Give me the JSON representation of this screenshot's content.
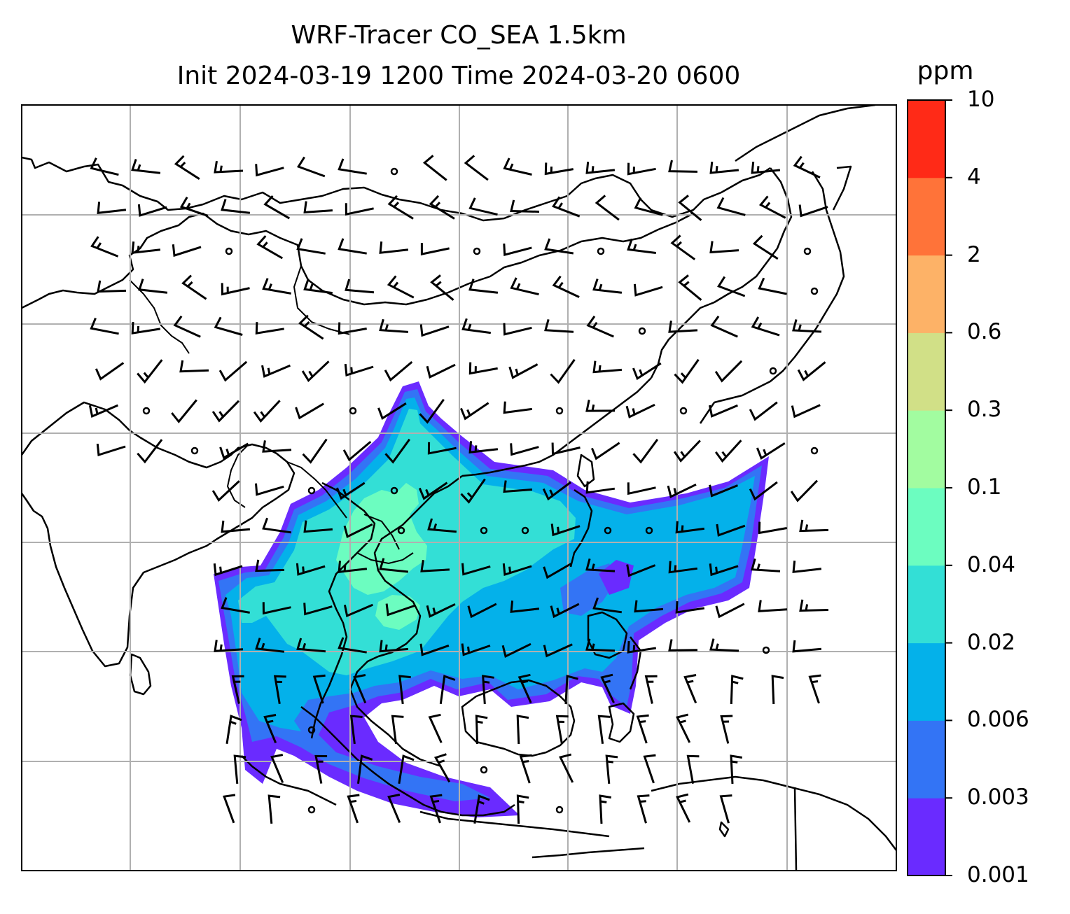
{
  "title": {
    "line1": "WRF-Tracer CO_SEA 1.5km",
    "line2": "Init 2024-03-19 1200 Time 2024-03-20 0600"
  },
  "colorbar": {
    "unit": "ppm",
    "ticks": [
      "0.001",
      "0.003",
      "0.006",
      "0.02",
      "0.04",
      "0.1",
      "0.3",
      "0.6",
      "2",
      "4",
      "10"
    ],
    "colors": [
      "#6a2bff",
      "#3374f5",
      "#04b1ea",
      "#33dfd6",
      "#6cfdc0",
      "#a2fca0",
      "#d1e087",
      "#fdb267",
      "#ff7339",
      "#ff2a17"
    ]
  },
  "map": {
    "variable": "CO_SEA tracer concentration",
    "overlay": "wind barbs",
    "gridlines": true,
    "coastlines": true,
    "borders": true
  }
}
